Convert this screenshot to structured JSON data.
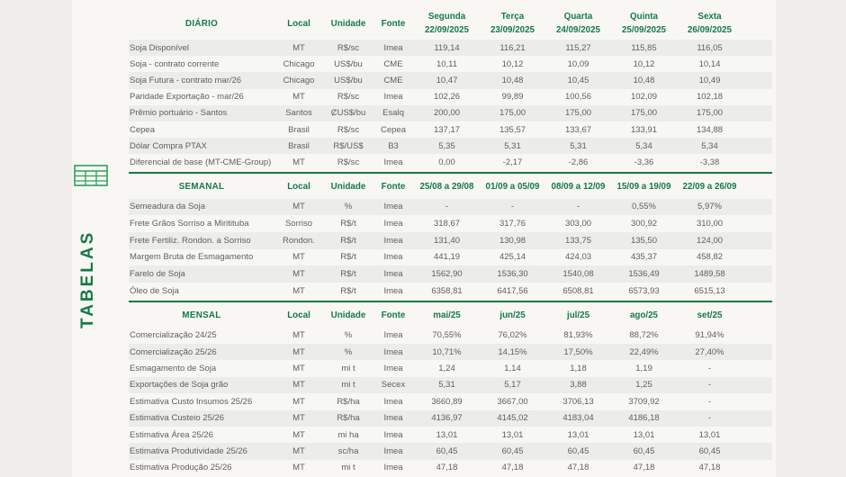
{
  "sidebar": {
    "title": "TABELAS"
  },
  "colors": {
    "accent_green": "#16794a",
    "divider_green": "#157a44"
  },
  "tables": [
    {
      "id": "diario",
      "title": "DIÁRIO",
      "meta_headers": [
        "Local",
        "Unidade",
        "Fonte"
      ],
      "col_headers": [
        [
          "Segunda",
          "22/09/2025"
        ],
        [
          "Terça",
          "23/09/2025"
        ],
        [
          "Quarta",
          "24/09/2025"
        ],
        [
          "Quinta",
          "25/09/2025"
        ],
        [
          "Sexta",
          "26/09/2025"
        ]
      ],
      "rows": [
        {
          "label": "Soja Disponível",
          "local": "MT",
          "unidade": "R$/sc",
          "fonte": "Imea",
          "values": [
            "119,14",
            "116,21",
            "115,27",
            "115,85",
            "116,05"
          ]
        },
        {
          "label": "Soja - contrato corrente",
          "local": "Chicago",
          "unidade": "US$/bu",
          "fonte": "CME",
          "values": [
            "10,11",
            "10,12",
            "10,09",
            "10,12",
            "10,14"
          ]
        },
        {
          "label": "Soja Futura - contrato mar/26",
          "local": "Chicago",
          "unidade": "US$/bu",
          "fonte": "CME",
          "values": [
            "10,47",
            "10,48",
            "10,45",
            "10,48",
            "10,49"
          ]
        },
        {
          "label": "Paridade Exportação - mar/26",
          "local": "MT",
          "unidade": "R$/sc",
          "fonte": "Imea",
          "values": [
            "102,26",
            "99,89",
            "100,56",
            "102,09",
            "102,18"
          ]
        },
        {
          "label": "Prêmio portuário - Santos",
          "local": "Santos",
          "unidade": "ȻUS$/bu",
          "fonte": "Esalq",
          "values": [
            "200,00",
            "175,00",
            "175,00",
            "175,00",
            "175,00"
          ]
        },
        {
          "label": "Cepea",
          "local": "Brasil",
          "unidade": "R$/sc",
          "fonte": "Cepea",
          "values": [
            "137,17",
            "135,57",
            "133,67",
            "133,91",
            "134,88"
          ]
        },
        {
          "label": "Dólar Compra PTAX",
          "local": "Brasil",
          "unidade": "R$/US$",
          "fonte": "B3",
          "values": [
            "5,35",
            "5,31",
            "5,31",
            "5,34",
            "5,34"
          ]
        },
        {
          "label": "Diferencial de base (MT-CME-Group)",
          "local": "MT",
          "unidade": "R$/sc",
          "fonte": "Imea",
          "values": [
            "0,00",
            "-2,17",
            "-2,86",
            "-3,36",
            "-3,38"
          ]
        }
      ]
    },
    {
      "id": "semanal",
      "title": "SEMANAL",
      "meta_headers": [
        "Local",
        "Unidade",
        "Fonte"
      ],
      "col_headers": [
        [
          "25/08 a 29/08"
        ],
        [
          "01/09 a 05/09"
        ],
        [
          "08/09 a 12/09"
        ],
        [
          "15/09 a 19/09"
        ],
        [
          "22/09 a 26/09"
        ]
      ],
      "rows": [
        {
          "label": "Semeadura da Soja",
          "local": "MT",
          "unidade": "%",
          "fonte": "Imea",
          "values": [
            "-",
            "-",
            "-",
            "0,55%",
            "5,97%"
          ]
        },
        {
          "label": "Frete Grãos Sorriso a Miritituba",
          "local": "Sorriso",
          "unidade": "R$/t",
          "fonte": "Imea",
          "values": [
            "318,67",
            "317,76",
            "303,00",
            "300,92",
            "310,00"
          ]
        },
        {
          "label": "Frete Fertiliz. Rondon. a Sorriso",
          "local": "Rondon.",
          "unidade": "R$/t",
          "fonte": "Imea",
          "values": [
            "131,40",
            "130,98",
            "133,75",
            "135,50",
            "124,00"
          ]
        },
        {
          "label": "Margem Bruta de Esmagamento",
          "local": "MT",
          "unidade": "R$/t",
          "fonte": "Imea",
          "values": [
            "441,19",
            "425,14",
            "424,03",
            "435,37",
            "458,82"
          ]
        },
        {
          "label": "Farelo de Soja",
          "local": "MT",
          "unidade": "R$/t",
          "fonte": "Imea",
          "values": [
            "1562,90",
            "1536,30",
            "1540,08",
            "1536,49",
            "1489,58"
          ]
        },
        {
          "label": "Óleo de Soja",
          "local": "MT",
          "unidade": "R$/t",
          "fonte": "Imea",
          "values": [
            "6358,81",
            "6417,56",
            "6508,81",
            "6573,93",
            "6515,13"
          ]
        }
      ]
    },
    {
      "id": "mensal",
      "title": "MENSAL",
      "meta_headers": [
        "Local",
        "Unidade",
        "Fonte"
      ],
      "col_headers": [
        [
          "mai/25"
        ],
        [
          "jun/25"
        ],
        [
          "jul/25"
        ],
        [
          "ago/25"
        ],
        [
          "set/25"
        ]
      ],
      "rows": [
        {
          "label": "Comercialização 24/25",
          "local": "MT",
          "unidade": "%",
          "fonte": "Imea",
          "values": [
            "70,55%",
            "76,02%",
            "81,93%",
            "88,72%",
            "91,94%"
          ]
        },
        {
          "label": "Comercialização 25/26",
          "local": "MT",
          "unidade": "%",
          "fonte": "Imea",
          "values": [
            "10,71%",
            "14,15%",
            "17,50%",
            "22,49%",
            "27,40%"
          ]
        },
        {
          "label": "Esmagamento de Soja",
          "local": "MT",
          "unidade": "mi t",
          "fonte": "Imea",
          "values": [
            "1,24",
            "1,14",
            "1,18",
            "1,19",
            "-"
          ]
        },
        {
          "label": "Exportações de Soja grão",
          "local": "MT",
          "unidade": "mi t",
          "fonte": "Secex",
          "values": [
            "5,31",
            "5,17",
            "3,88",
            "1,25",
            "-"
          ]
        },
        {
          "label": "Estimativa Custo Insumos 25/26",
          "local": "MT",
          "unidade": "R$/ha",
          "fonte": "Imea",
          "values": [
            "3660,89",
            "3667,00",
            "3706,13",
            "3709,92",
            "-"
          ]
        },
        {
          "label": "Estimativa Custeio 25/26",
          "local": "MT",
          "unidade": "R$/ha",
          "fonte": "Imea",
          "values": [
            "4136,97",
            "4145,02",
            "4183,04",
            "4186,18",
            "-"
          ]
        },
        {
          "label": "Estimativa Área 25/26",
          "local": "MT",
          "unidade": "mi ha",
          "fonte": "Imea",
          "values": [
            "13,01",
            "13,01",
            "13,01",
            "13,01",
            "13,01"
          ]
        },
        {
          "label": "Estimativa Produtividade 25/26",
          "local": "MT",
          "unidade": "sc/ha",
          "fonte": "Imea",
          "values": [
            "60,45",
            "60,45",
            "60,45",
            "60,45",
            "60,45"
          ]
        },
        {
          "label": "Estimativa Produção 25/26",
          "local": "MT",
          "unidade": "mi t",
          "fonte": "Imea",
          "values": [
            "47,18",
            "47,18",
            "47,18",
            "47,18",
            "47,18"
          ]
        }
      ]
    }
  ]
}
